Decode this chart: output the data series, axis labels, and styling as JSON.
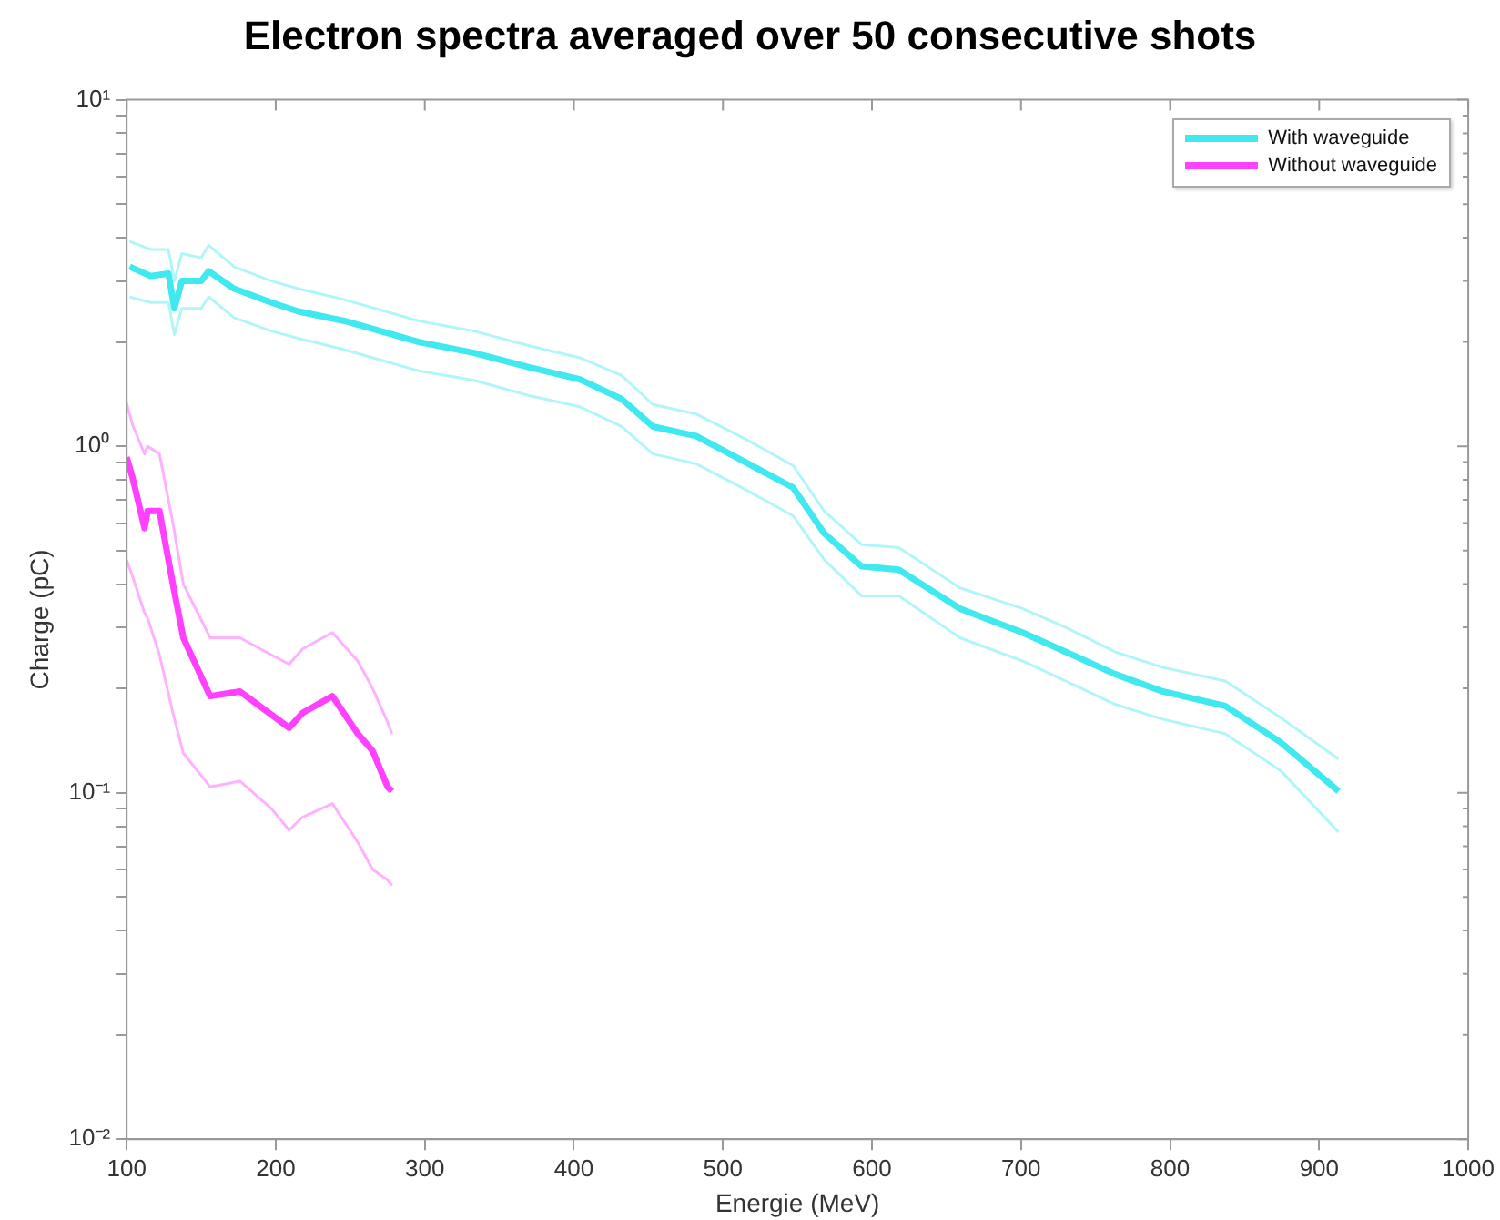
{
  "chart_data": {
    "type": "line",
    "title": "Electron spectra averaged over 50 consecutive shots",
    "xlabel": "Energie (MeV)",
    "ylabel": "Charge (pC)",
    "log": "y",
    "grid": false,
    "legend": "top right",
    "marker": "none",
    "line_style": "solid",
    "xlim": [
      100,
      1000
    ],
    "xticks": [
      100,
      200,
      300,
      400,
      500,
      600,
      700,
      800,
      900,
      1000
    ],
    "ylim": [
      0.01,
      10
    ],
    "yticks": [
      {
        "value": 0.01,
        "label": "10⁻²"
      },
      {
        "value": 0.02,
        "label": null
      },
      {
        "value": 0.03,
        "label": null
      },
      {
        "value": 0.04,
        "label": null
      },
      {
        "value": 0.05,
        "label": null
      },
      {
        "value": 0.06,
        "label": null
      },
      {
        "value": 0.07,
        "label": null
      },
      {
        "value": 0.08,
        "label": null
      },
      {
        "value": 0.09,
        "label": null
      },
      {
        "value": 0.1,
        "label": "10⁻¹"
      },
      {
        "value": 0.2,
        "label": null
      },
      {
        "value": 0.3,
        "label": null
      },
      {
        "value": 0.4,
        "label": null
      },
      {
        "value": 0.5,
        "label": null
      },
      {
        "value": 0.6,
        "label": null
      },
      {
        "value": 0.7,
        "label": null
      },
      {
        "value": 0.8,
        "label": null
      },
      {
        "value": 0.9,
        "label": null
      },
      {
        "value": 1,
        "label": "10⁰"
      },
      {
        "value": 2,
        "label": null
      },
      {
        "value": 3,
        "label": null
      },
      {
        "value": 4,
        "label": null
      },
      {
        "value": 5,
        "label": null
      },
      {
        "value": 6,
        "label": null
      },
      {
        "value": 7,
        "label": null
      },
      {
        "value": 8,
        "label": null
      },
      {
        "value": 9,
        "label": null
      },
      {
        "value": 10,
        "label": "10¹"
      }
    ],
    "series": [
      {
        "name": "With waveguide",
        "color": "#40e8f0",
        "x": [
          102,
          116,
          128,
          132,
          137,
          150,
          155,
          172,
          197,
          215,
          246,
          296,
          333,
          370,
          404,
          432,
          453,
          482,
          515,
          547,
          568,
          593,
          618,
          659,
          701,
          730,
          763,
          795,
          837,
          874,
          913
        ],
        "values": [
          3.3,
          3.1,
          3.15,
          2.5,
          3.0,
          3.0,
          3.2,
          2.85,
          2.6,
          2.45,
          2.3,
          2.0,
          1.86,
          1.69,
          1.56,
          1.37,
          1.14,
          1.07,
          0.9,
          0.76,
          0.56,
          0.45,
          0.44,
          0.34,
          0.29,
          0.255,
          0.22,
          0.196,
          0.178,
          0.14,
          0.101
        ]
      },
      {
        "color": "#b0f6f8",
        "x": [
          102,
          116,
          128,
          132,
          137,
          150,
          155,
          172,
          197,
          215,
          246,
          296,
          333,
          370,
          404,
          432,
          453,
          482,
          515,
          547,
          568,
          593,
          618,
          659,
          701,
          730,
          763,
          795,
          837,
          874,
          913
        ],
        "values": [
          3.9,
          3.7,
          3.7,
          3.0,
          3.6,
          3.5,
          3.8,
          3.3,
          3.0,
          2.85,
          2.65,
          2.3,
          2.15,
          1.95,
          1.8,
          1.6,
          1.32,
          1.24,
          1.05,
          0.88,
          0.65,
          0.52,
          0.51,
          0.39,
          0.34,
          0.3,
          0.255,
          0.23,
          0.21,
          0.165,
          0.125
        ]
      },
      {
        "color": "#b0f6f8",
        "x": [
          102,
          116,
          128,
          132,
          137,
          150,
          155,
          172,
          197,
          215,
          246,
          296,
          333,
          370,
          404,
          432,
          453,
          482,
          515,
          547,
          568,
          593,
          618,
          659,
          701,
          730,
          763,
          795,
          837,
          874,
          913
        ],
        "values": [
          2.7,
          2.6,
          2.6,
          2.1,
          2.5,
          2.5,
          2.7,
          2.35,
          2.15,
          2.05,
          1.9,
          1.65,
          1.55,
          1.4,
          1.3,
          1.14,
          0.95,
          0.89,
          0.75,
          0.63,
          0.47,
          0.37,
          0.37,
          0.28,
          0.24,
          0.21,
          0.18,
          0.163,
          0.148,
          0.116,
          0.077
        ]
      },
      {
        "name": "Without waveguide",
        "color": "#ff40ff",
        "x": [
          100,
          104,
          112,
          114,
          122,
          131,
          138,
          156,
          176,
          197,
          209,
          218,
          238,
          255,
          265,
          275,
          278
        ],
        "values": [
          0.93,
          0.81,
          0.58,
          0.65,
          0.65,
          0.4,
          0.28,
          0.19,
          0.196,
          0.168,
          0.154,
          0.17,
          0.19,
          0.148,
          0.132,
          0.104,
          0.101
        ]
      },
      {
        "color": "#ffb0ff",
        "x": [
          100,
          104,
          112,
          114,
          122,
          131,
          138,
          156,
          176,
          197,
          209,
          218,
          238,
          255,
          265,
          275,
          278
        ],
        "values": [
          1.33,
          1.15,
          0.95,
          1.0,
          0.95,
          0.6,
          0.4,
          0.28,
          0.28,
          0.25,
          0.235,
          0.26,
          0.29,
          0.24,
          0.2,
          0.16,
          0.148
        ]
      },
      {
        "color": "#ffb0ff",
        "x": [
          100,
          104,
          112,
          114,
          122,
          131,
          138,
          156,
          176,
          197,
          209,
          218,
          238,
          255,
          265,
          275,
          278
        ],
        "values": [
          0.47,
          0.42,
          0.33,
          0.32,
          0.25,
          0.17,
          0.13,
          0.104,
          0.108,
          0.09,
          0.078,
          0.085,
          0.093,
          0.072,
          0.06,
          0.056,
          0.054
        ]
      }
    ]
  }
}
